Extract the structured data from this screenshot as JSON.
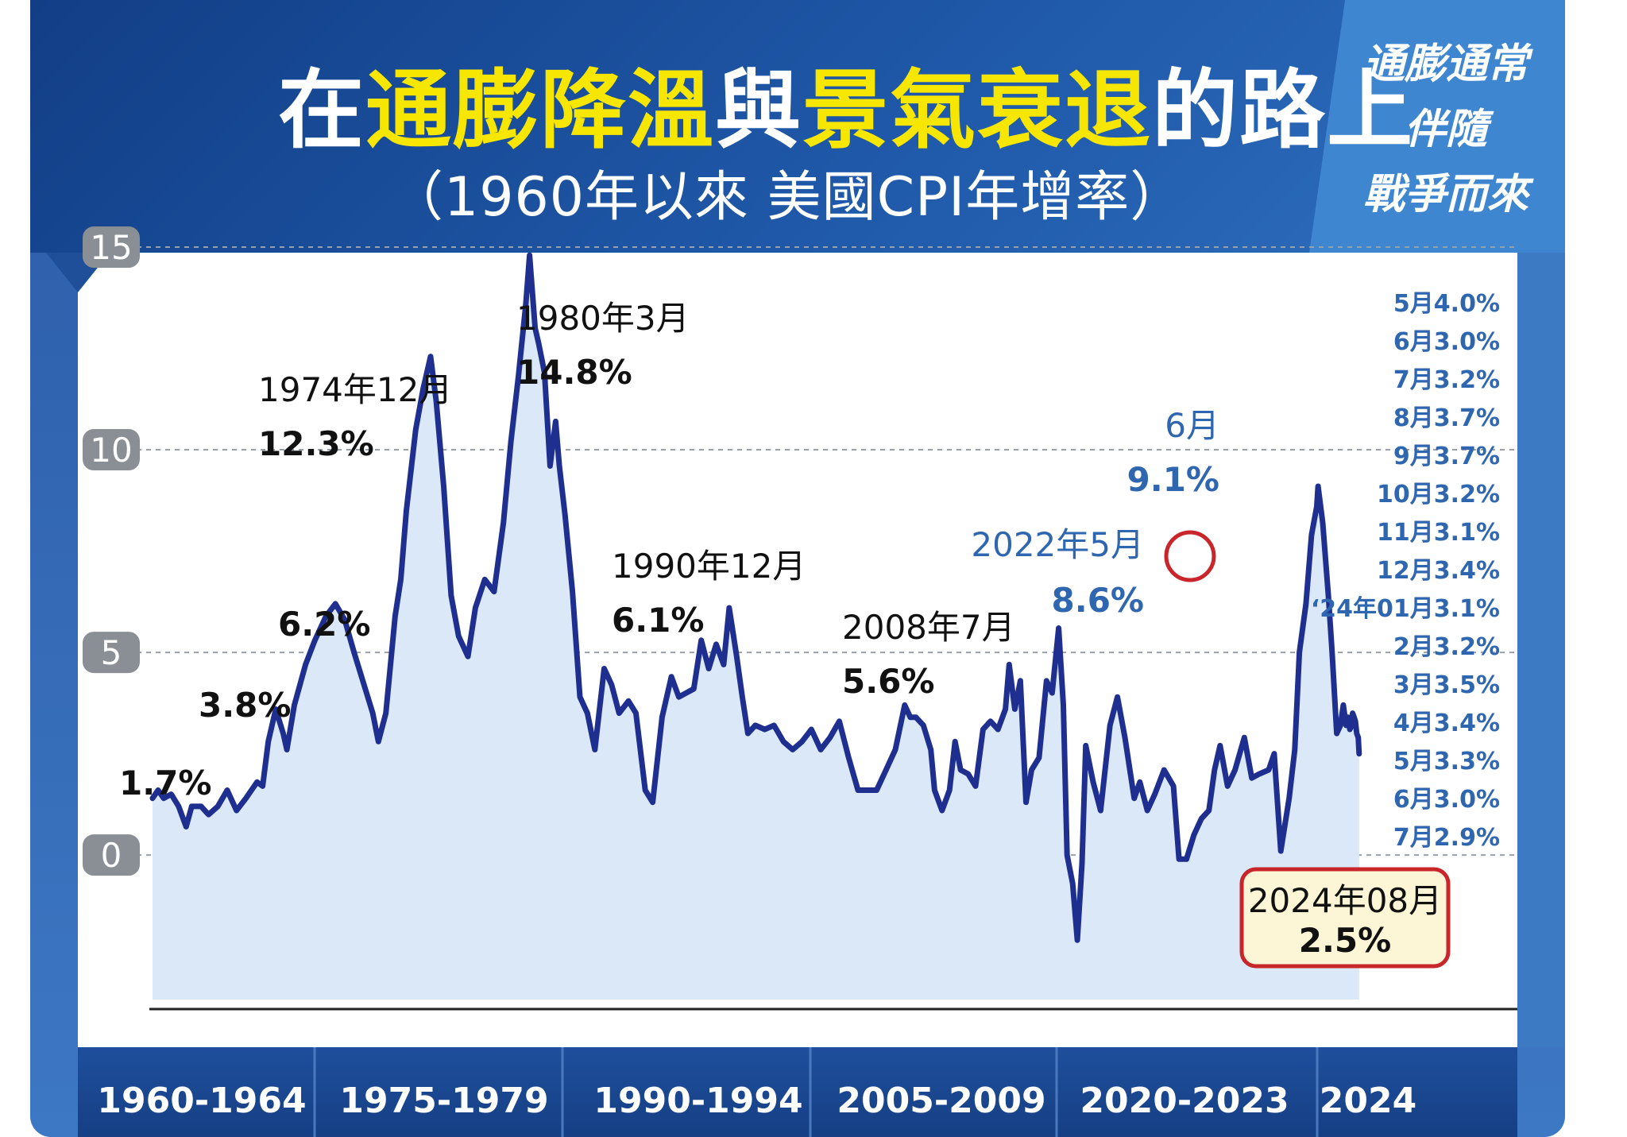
{
  "header": {
    "title_parts": [
      {
        "text": "在",
        "hl": false
      },
      {
        "text": "通膨降溫",
        "hl": true
      },
      {
        "text": "與",
        "hl": false
      },
      {
        "text": "景氣衰退",
        "hl": true
      },
      {
        "text": "的路上",
        "hl": false
      }
    ],
    "subtitle": "（1960年以來 美國CPI年增率）",
    "side_lines": [
      "通膨通常",
      "伴隨",
      "戰爭而來"
    ]
  },
  "colors": {
    "header_dark": "#123e86",
    "highlight": "#f6e600",
    "line": "#1f2f8f",
    "area": "#dbe8f7",
    "accent_blue": "#2f66b0",
    "circle_red": "#c8262a",
    "callout_fill": "#fdf6d6"
  },
  "chart_data": {
    "type": "line",
    "title": "在通膨降溫與景氣衰退的路上",
    "subtitle": "（1960年以來 美國CPI年增率）",
    "xlabel": "",
    "ylabel": "",
    "xlim": [
      1960.0,
      2024.7
    ],
    "ylim": [
      -3.8,
      16
    ],
    "y_ticks": [
      0,
      5,
      10,
      15
    ],
    "y_tick_labels": [
      "0",
      "5",
      "10",
      "15"
    ],
    "x_ticks": [
      "1960-1964",
      "1975-1979",
      "1990-1994",
      "2005-2009",
      "2020-2023",
      "2024"
    ],
    "grid": "horizontal dashed",
    "series": [
      {
        "points": [
          [
            1960.0,
            1.4
          ],
          [
            1960.3,
            1.6
          ],
          [
            1960.6,
            1.4
          ],
          [
            1961.0,
            1.5
          ],
          [
            1961.4,
            1.2
          ],
          [
            1961.8,
            0.7
          ],
          [
            1962.1,
            1.2
          ],
          [
            1962.6,
            1.2
          ],
          [
            1963.0,
            1.0
          ],
          [
            1963.5,
            1.2
          ],
          [
            1964.0,
            1.6
          ],
          [
            1964.5,
            1.1
          ],
          [
            1965.0,
            1.4
          ],
          [
            1965.6,
            1.8
          ],
          [
            1965.9,
            1.7
          ],
          [
            1966.2,
            2.8
          ],
          [
            1966.6,
            3.6
          ],
          [
            1967.0,
            3.0
          ],
          [
            1967.2,
            2.6
          ],
          [
            1967.6,
            3.7
          ],
          [
            1968.2,
            4.7
          ],
          [
            1968.7,
            5.3
          ],
          [
            1969.3,
            5.9
          ],
          [
            1969.8,
            6.2
          ],
          [
            1970.3,
            5.8
          ],
          [
            1970.8,
            5.0
          ],
          [
            1971.4,
            4.1
          ],
          [
            1971.8,
            3.5
          ],
          [
            1972.1,
            2.8
          ],
          [
            1972.5,
            3.5
          ],
          [
            1973.0,
            5.9
          ],
          [
            1973.3,
            6.8
          ],
          [
            1973.6,
            8.5
          ],
          [
            1974.1,
            10.5
          ],
          [
            1974.5,
            11.5
          ],
          [
            1974.9,
            12.3
          ],
          [
            1975.2,
            11.2
          ],
          [
            1975.6,
            9.1
          ],
          [
            1976.0,
            6.4
          ],
          [
            1976.4,
            5.4
          ],
          [
            1976.9,
            4.9
          ],
          [
            1977.3,
            6.1
          ],
          [
            1977.8,
            6.8
          ],
          [
            1978.3,
            6.5
          ],
          [
            1978.8,
            8.2
          ],
          [
            1979.2,
            10.2
          ],
          [
            1979.6,
            11.8
          ],
          [
            1980.0,
            13.6
          ],
          [
            1980.2,
            14.8
          ],
          [
            1980.5,
            13.0
          ],
          [
            1980.7,
            12.6
          ],
          [
            1981.0,
            11.9
          ],
          [
            1981.3,
            9.6
          ],
          [
            1981.6,
            10.7
          ],
          [
            1981.8,
            9.6
          ],
          [
            1982.1,
            8.4
          ],
          [
            1982.5,
            6.5
          ],
          [
            1982.9,
            3.9
          ],
          [
            1983.3,
            3.5
          ],
          [
            1983.7,
            2.6
          ],
          [
            1984.2,
            4.6
          ],
          [
            1984.6,
            4.2
          ],
          [
            1985.0,
            3.5
          ],
          [
            1985.5,
            3.8
          ],
          [
            1985.9,
            3.5
          ],
          [
            1986.4,
            1.6
          ],
          [
            1986.8,
            1.3
          ],
          [
            1987.3,
            3.4
          ],
          [
            1987.8,
            4.4
          ],
          [
            1988.2,
            3.9
          ],
          [
            1988.6,
            4.0
          ],
          [
            1989.0,
            4.1
          ],
          [
            1989.4,
            5.3
          ],
          [
            1989.8,
            4.6
          ],
          [
            1990.2,
            5.2
          ],
          [
            1990.6,
            4.7
          ],
          [
            1990.9,
            6.1
          ],
          [
            1991.3,
            4.9
          ],
          [
            1991.6,
            3.9
          ],
          [
            1991.9,
            3.0
          ],
          [
            1992.3,
            3.2
          ],
          [
            1992.8,
            3.1
          ],
          [
            1993.3,
            3.2
          ],
          [
            1993.8,
            2.8
          ],
          [
            1994.3,
            2.6
          ],
          [
            1994.8,
            2.8
          ],
          [
            1995.3,
            3.1
          ],
          [
            1995.8,
            2.6
          ],
          [
            1996.3,
            2.9
          ],
          [
            1996.8,
            3.3
          ],
          [
            1997.3,
            2.4
          ],
          [
            1997.8,
            1.6
          ],
          [
            1998.3,
            1.6
          ],
          [
            1998.8,
            1.6
          ],
          [
            1999.3,
            2.1
          ],
          [
            1999.8,
            2.6
          ],
          [
            2000.3,
            3.7
          ],
          [
            2000.6,
            3.4
          ],
          [
            2000.9,
            3.4
          ],
          [
            2001.3,
            3.2
          ],
          [
            2001.7,
            2.6
          ],
          [
            2001.9,
            1.6
          ],
          [
            2002.3,
            1.1
          ],
          [
            2002.7,
            1.6
          ],
          [
            2003.0,
            2.8
          ],
          [
            2003.3,
            2.1
          ],
          [
            2003.7,
            2.0
          ],
          [
            2004.1,
            1.7
          ],
          [
            2004.5,
            3.1
          ],
          [
            2004.9,
            3.3
          ],
          [
            2005.3,
            3.1
          ],
          [
            2005.7,
            3.6
          ],
          [
            2005.9,
            4.7
          ],
          [
            2006.2,
            3.6
          ],
          [
            2006.5,
            4.3
          ],
          [
            2006.8,
            1.3
          ],
          [
            2007.1,
            2.1
          ],
          [
            2007.5,
            2.4
          ],
          [
            2007.9,
            4.3
          ],
          [
            2008.2,
            4.0
          ],
          [
            2008.55,
            5.6
          ],
          [
            2008.8,
            3.7
          ],
          [
            2009.0,
            0.0
          ],
          [
            2009.3,
            -0.7
          ],
          [
            2009.55,
            -2.1
          ],
          [
            2009.8,
            -0.2
          ],
          [
            2010.0,
            2.7
          ],
          [
            2010.4,
            1.8
          ],
          [
            2010.8,
            1.1
          ],
          [
            2011.3,
            3.2
          ],
          [
            2011.7,
            3.9
          ],
          [
            2012.1,
            2.9
          ],
          [
            2012.6,
            1.4
          ],
          [
            2012.9,
            1.8
          ],
          [
            2013.3,
            1.1
          ],
          [
            2013.7,
            1.5
          ],
          [
            2014.2,
            2.1
          ],
          [
            2014.7,
            1.7
          ],
          [
            2015.0,
            -0.1
          ],
          [
            2015.4,
            -0.1
          ],
          [
            2015.8,
            0.5
          ],
          [
            2016.2,
            0.9
          ],
          [
            2016.6,
            1.1
          ],
          [
            2016.9,
            2.1
          ],
          [
            2017.2,
            2.7
          ],
          [
            2017.6,
            1.7
          ],
          [
            2018.0,
            2.1
          ],
          [
            2018.5,
            2.9
          ],
          [
            2018.9,
            1.9
          ],
          [
            2019.3,
            2.0
          ],
          [
            2019.8,
            2.1
          ],
          [
            2020.1,
            2.5
          ],
          [
            2020.45,
            0.1
          ],
          [
            2020.9,
            1.4
          ],
          [
            2021.2,
            2.6
          ],
          [
            2021.45,
            5.0
          ],
          [
            2021.8,
            6.2
          ],
          [
            2022.1,
            7.9
          ],
          [
            2022.38,
            8.6
          ],
          [
            2022.45,
            9.1
          ],
          [
            2022.7,
            8.2
          ],
          [
            2023.0,
            6.4
          ],
          [
            2023.2,
            5.0
          ],
          [
            2023.45,
            3.0
          ],
          [
            2023.65,
            3.2
          ],
          [
            2023.8,
            3.7
          ],
          [
            2023.95,
            3.2
          ],
          [
            2024.05,
            3.4
          ],
          [
            2024.15,
            3.1
          ],
          [
            2024.25,
            3.2
          ],
          [
            2024.3,
            3.5
          ],
          [
            2024.38,
            3.4
          ],
          [
            2024.45,
            3.3
          ],
          [
            2024.52,
            3.0
          ],
          [
            2024.6,
            2.9
          ],
          [
            2024.65,
            2.5
          ]
        ]
      }
    ],
    "annotations": [
      {
        "date": "",
        "value": "1.7%",
        "style": "black"
      },
      {
        "date": "",
        "value": "3.8%",
        "style": "black"
      },
      {
        "date": "",
        "value": "6.2%",
        "style": "black"
      },
      {
        "date": "1974年12月",
        "value": "12.3%",
        "style": "black"
      },
      {
        "date": "1980年3月",
        "value": "14.8%",
        "style": "black"
      },
      {
        "date": "1990年12月",
        "value": "6.1%",
        "style": "black"
      },
      {
        "date": "2008年7月",
        "value": "5.6%",
        "style": "black"
      },
      {
        "date": "2022年5月",
        "value": "8.6%",
        "style": "blue"
      },
      {
        "date": "6月",
        "value": "9.1%",
        "style": "blue"
      },
      {
        "date": "2024年08月",
        "value": "2.5%",
        "style": "callout"
      }
    ],
    "monthly_list": [
      "5月4.0%",
      "6月3.0%",
      "7月3.2%",
      "8月3.7%",
      "9月3.7%",
      "10月3.2%",
      "11月3.1%",
      "12月3.4%",
      "‘24年01月3.1%",
      "2月3.2%",
      "3月3.5%",
      "4月3.4%",
      "5月3.3%",
      "6月3.0%",
      "7月2.9%"
    ]
  }
}
